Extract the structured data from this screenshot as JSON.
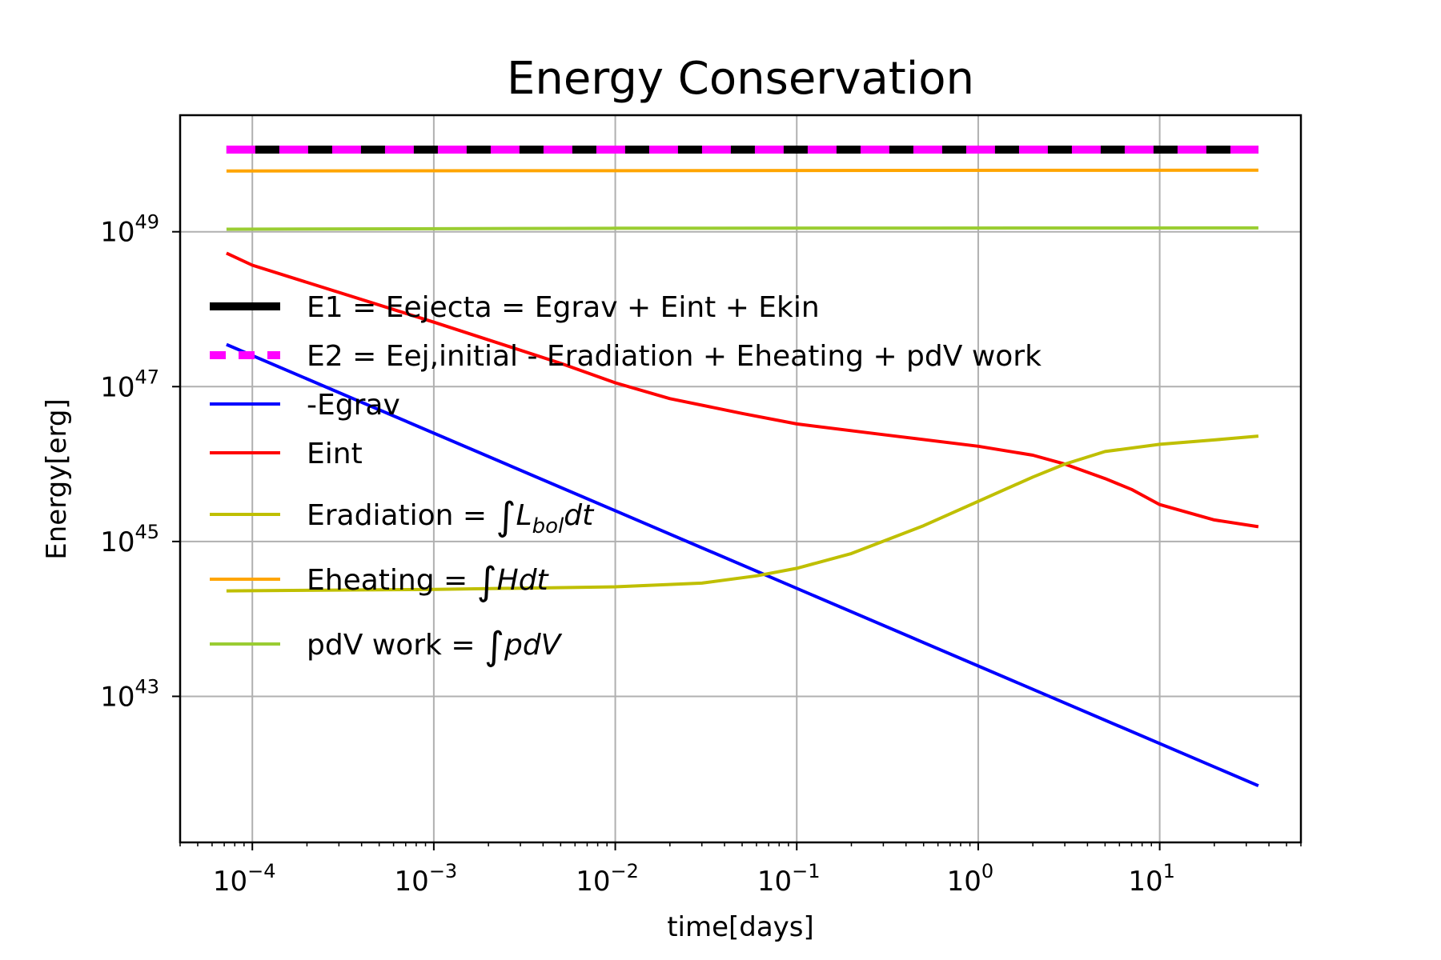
{
  "chart_data": {
    "type": "line",
    "title": "Energy Conservation",
    "xlabel": "time[days]",
    "ylabel": "Energy[erg]",
    "xscale": "log",
    "yscale": "log",
    "xlim": [
      4e-05,
      60
    ],
    "ylim": [
      1.3e+41,
      3.2e+50
    ],
    "grid": true,
    "legend_position": "center-left",
    "x_tick_labels": [
      {
        "value": 0.0001,
        "base": "10",
        "exp": "−4"
      },
      {
        "value": 0.001,
        "base": "10",
        "exp": "−3"
      },
      {
        "value": 0.01,
        "base": "10",
        "exp": "−2"
      },
      {
        "value": 0.1,
        "base": "10",
        "exp": "−1"
      },
      {
        "value": 1,
        "base": "10",
        "exp": "0"
      },
      {
        "value": 10,
        "base": "10",
        "exp": "1"
      }
    ],
    "y_tick_labels": [
      {
        "value": 1e+43,
        "base": "10",
        "exp": "43"
      },
      {
        "value": 1e+45,
        "base": "10",
        "exp": "45"
      },
      {
        "value": 1e+47,
        "base": "10",
        "exp": "47"
      },
      {
        "value": 1e+49,
        "base": "10",
        "exp": "49"
      }
    ],
    "series": [
      {
        "name": "E1 = Eejecta = Egrav + Eint + Ekin",
        "color": "#000000",
        "style": "solid-thick",
        "points": [
          [
            7.2e-05,
            1.15e+50
          ],
          [
            35,
            1.15e+50
          ]
        ]
      },
      {
        "name": "E2 = Eej,initial - Eradiation + Eheating + pdV work",
        "color": "#ff00ff",
        "style": "dashed-thick",
        "points": [
          [
            7.2e-05,
            1.15e+50
          ],
          [
            35,
            1.15e+50
          ]
        ]
      },
      {
        "name": "-Egrav",
        "color": "#0000ff",
        "style": "solid",
        "points": [
          [
            7.2e-05,
            3.5e+47
          ],
          [
            35,
            7e+41
          ]
        ]
      },
      {
        "name": "Eint",
        "color": "#ff0000",
        "style": "solid",
        "points": [
          [
            7.2e-05,
            5.3e+48
          ],
          [
            0.0001,
            3.7e+48
          ],
          [
            0.001,
            6.8e+47
          ],
          [
            0.005,
            2e+47
          ],
          [
            0.01,
            1.12e+47
          ],
          [
            0.02,
            7e+46
          ],
          [
            0.05,
            4.5e+46
          ],
          [
            0.1,
            3.3e+46
          ],
          [
            0.3,
            2.4e+46
          ],
          [
            1,
            1.7e+46
          ],
          [
            2,
            1.3e+46
          ],
          [
            3,
            1e+46
          ],
          [
            5,
            6.5e+45
          ],
          [
            7,
            4.7e+45
          ],
          [
            10,
            3e+45
          ],
          [
            20,
            1.9e+45
          ],
          [
            35,
            1.55e+45
          ]
        ]
      },
      {
        "name": "Eradiation = ∫L_bol dt",
        "color": "#bfbf00",
        "style": "solid",
        "points": [
          [
            7.2e-05,
            2.3e+44
          ],
          [
            0.001,
            2.4e+44
          ],
          [
            0.01,
            2.6e+44
          ],
          [
            0.03,
            2.9e+44
          ],
          [
            0.06,
            3.6e+44
          ],
          [
            0.1,
            4.5e+44
          ],
          [
            0.2,
            7e+44
          ],
          [
            0.5,
            1.6e+45
          ],
          [
            1,
            3.3e+45
          ],
          [
            2,
            6.8e+45
          ],
          [
            3,
            1e+46
          ],
          [
            5,
            1.45e+46
          ],
          [
            10,
            1.8e+46
          ],
          [
            20,
            2.05e+46
          ],
          [
            35,
            2.3e+46
          ]
        ]
      },
      {
        "name": "Eheating = ∫Hdt",
        "color": "#ffa500",
        "style": "solid",
        "points": [
          [
            7.2e-05,
            6.1e+49
          ],
          [
            35,
            6.25e+49
          ]
        ]
      },
      {
        "name": "pdV work = ∫pdV",
        "color": "#9acd32",
        "style": "solid",
        "points": [
          [
            7.2e-05,
            1.08e+49
          ],
          [
            0.01,
            1.11e+49
          ],
          [
            35,
            1.12e+49
          ]
        ]
      }
    ],
    "legend": [
      {
        "plain": "E1 = Eejecta = Egrav + Eint + Ekin"
      },
      {
        "plain": "E2 = Eej,initial - Eradiation + Eheating + pdV work"
      },
      {
        "plain": "-Egrav"
      },
      {
        "plain": "Eint"
      },
      {
        "plain": "Eradiation = ",
        "integral": "∫",
        "math": "L",
        "sub": "bol",
        "tail": "dt"
      },
      {
        "plain": "Eheating = ",
        "integral": "∫",
        "math": "Hdt"
      },
      {
        "plain": "pdV work = ",
        "integral": "∫",
        "math": "pdV"
      }
    ]
  }
}
